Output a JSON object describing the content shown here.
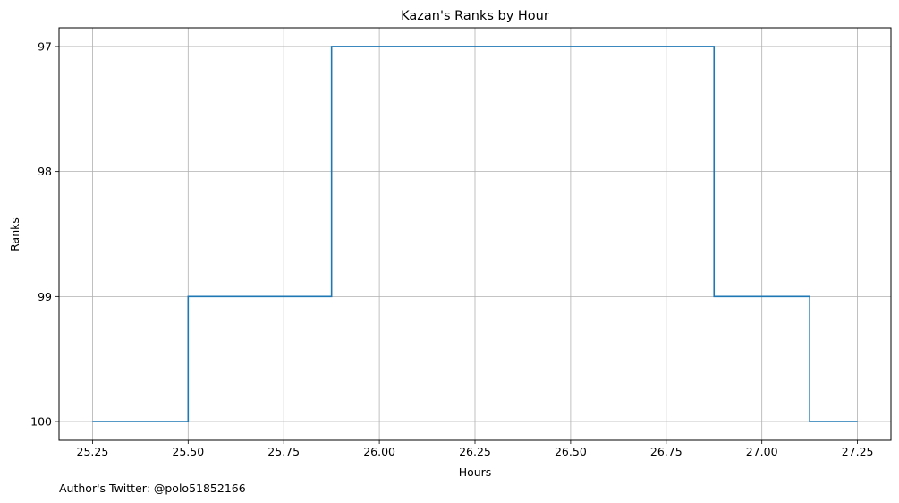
{
  "chart_data": {
    "type": "line",
    "drawstyle": "steps-pre",
    "title": "Kazan's Ranks by Hour",
    "xlabel": "Hours",
    "ylabel": "Ranks",
    "x": [
      25.25,
      25.5,
      25.875,
      26.875,
      27.125,
      27.25
    ],
    "y": [
      100,
      100,
      99,
      97,
      99,
      100
    ],
    "xlim": [
      25.1625,
      27.3375
    ],
    "ylim": [
      100.15,
      96.85
    ],
    "y_inverted": true,
    "xticks": [
      "25.25",
      "25.50",
      "25.75",
      "26.00",
      "26.25",
      "26.50",
      "26.75",
      "27.00",
      "27.25"
    ],
    "yticks": [
      "97",
      "98",
      "99",
      "100"
    ],
    "grid": true,
    "line_color": "#1f77b4"
  },
  "footnote": "Author's Twitter: @polo51852166"
}
